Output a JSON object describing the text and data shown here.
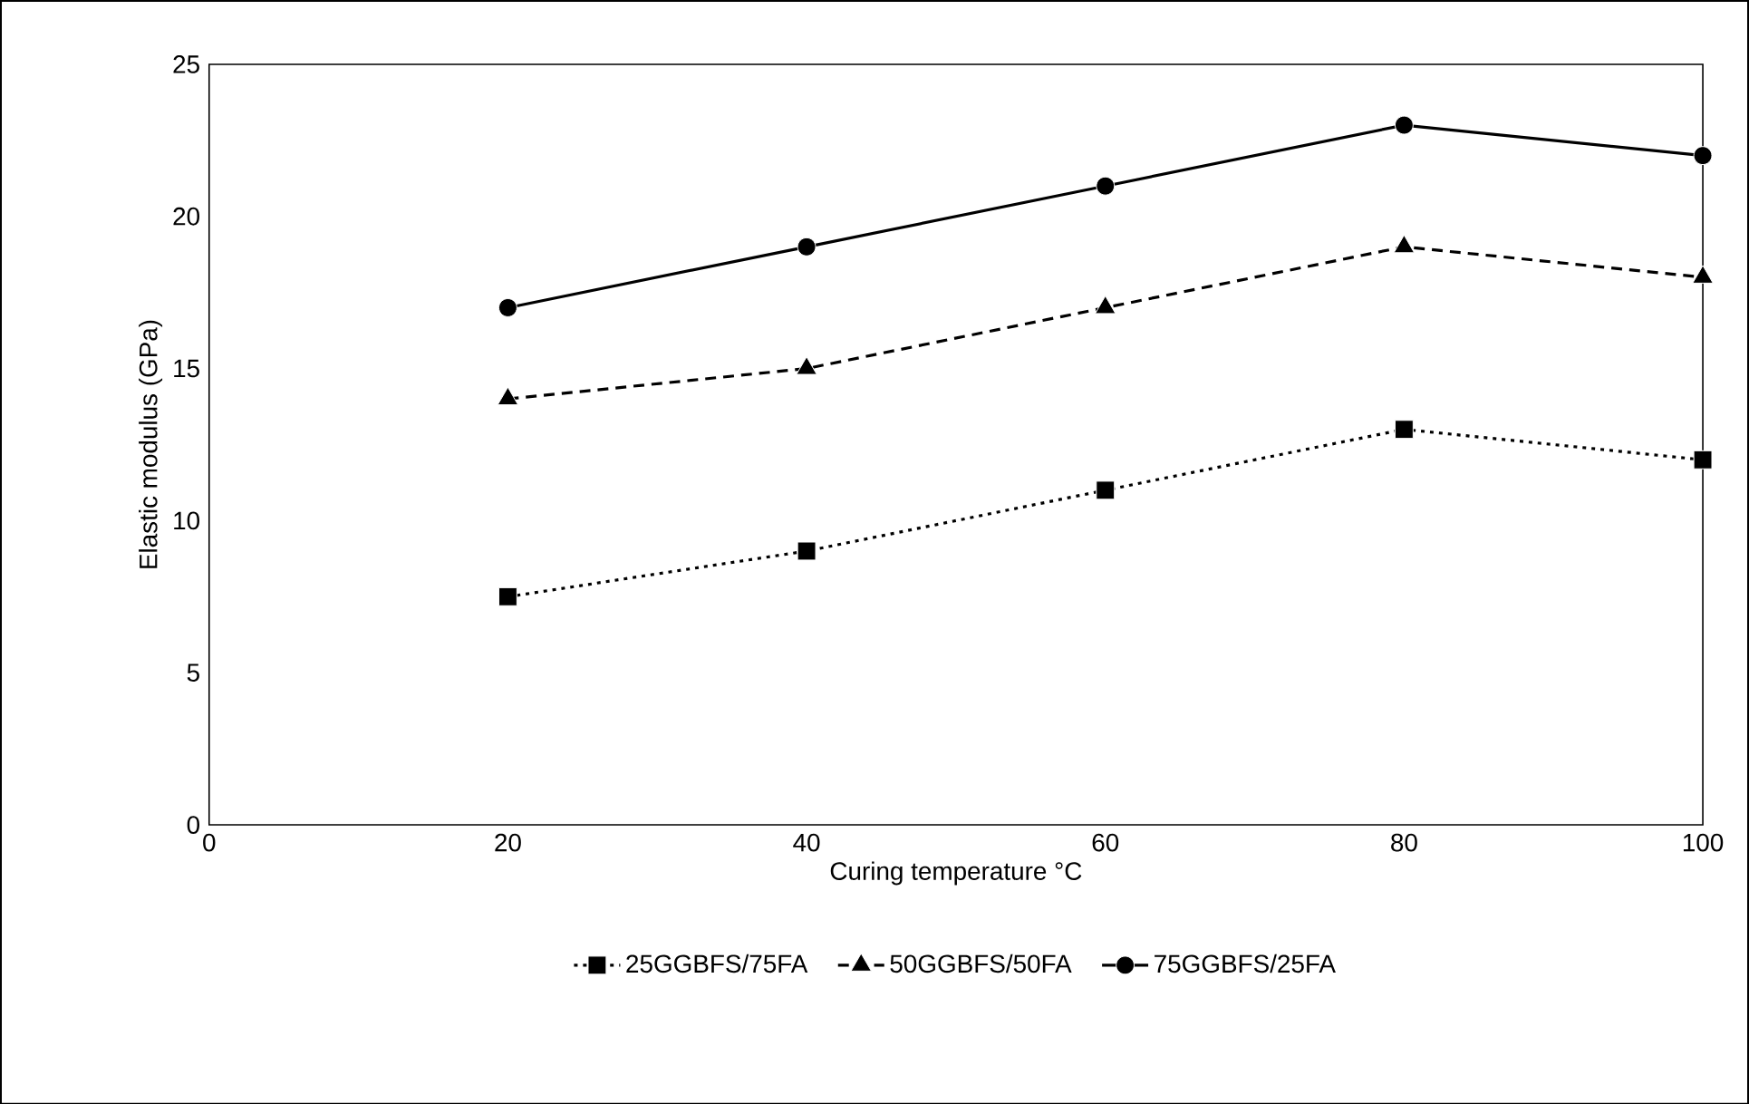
{
  "chart_data": {
    "type": "line",
    "xlabel": "Curing temperature °C",
    "ylabel": "Elastic modulus (GPa)",
    "x": [
      20,
      40,
      60,
      80,
      100
    ],
    "series": [
      {
        "name": "25GGBFS/75FA",
        "color": "#000000",
        "marker": "square",
        "line_style": "dotted",
        "values": [
          7.5,
          9,
          11,
          13,
          12
        ]
      },
      {
        "name": "50GGBFS/50FA",
        "color": "#000000",
        "marker": "triangle",
        "line_style": "dashed",
        "values": [
          14,
          15,
          17,
          19,
          18
        ]
      },
      {
        "name": "75GGBFS/25FA",
        "color": "#000000",
        "marker": "circle",
        "line_style": "solid",
        "values": [
          17,
          19,
          21,
          23,
          22
        ]
      }
    ],
    "xlim": [
      0,
      100
    ],
    "xticks": [
      0,
      20,
      40,
      60,
      80,
      100
    ],
    "ylim": [
      0,
      25
    ],
    "yticks": [
      0,
      5,
      10,
      15,
      20,
      25
    ],
    "grid": false,
    "legend": "bottom"
  }
}
